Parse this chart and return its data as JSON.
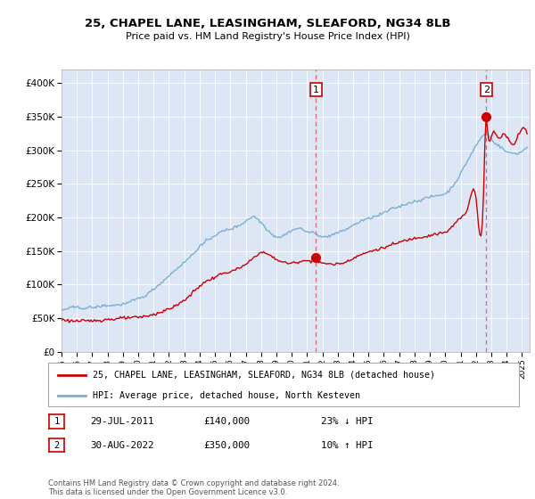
{
  "title1": "25, CHAPEL LANE, LEASINGHAM, SLEAFORD, NG34 8LB",
  "title2": "Price paid vs. HM Land Registry's House Price Index (HPI)",
  "background_color": "#dce6f5",
  "plot_bg_color": "#dce6f5",
  "red_color": "#cc0000",
  "blue_color": "#7bafd4",
  "legend_label_red": "25, CHAPEL LANE, LEASINGHAM, SLEAFORD, NG34 8LB (detached house)",
  "legend_label_blue": "HPI: Average price, detached house, North Kesteven",
  "annotation1_date": "29-JUL-2011",
  "annotation1_price": "£140,000",
  "annotation1_hpi": "23% ↓ HPI",
  "annotation2_date": "30-AUG-2022",
  "annotation2_price": "£350,000",
  "annotation2_hpi": "10% ↑ HPI",
  "footer": "Contains HM Land Registry data © Crown copyright and database right 2024.\nThis data is licensed under the Open Government Licence v3.0.",
  "ylim": [
    0,
    420000
  ],
  "yticks": [
    0,
    50000,
    100000,
    150000,
    200000,
    250000,
    300000,
    350000,
    400000
  ],
  "ytick_labels": [
    "£0",
    "£50K",
    "£100K",
    "£150K",
    "£200K",
    "£250K",
    "£300K",
    "£350K",
    "£400K"
  ],
  "sale1_x": 2011.58,
  "sale1_y": 140000,
  "sale2_x": 2022.67,
  "sale2_y": 350000,
  "xlim_start": 1995.0,
  "xlim_end": 2025.5
}
